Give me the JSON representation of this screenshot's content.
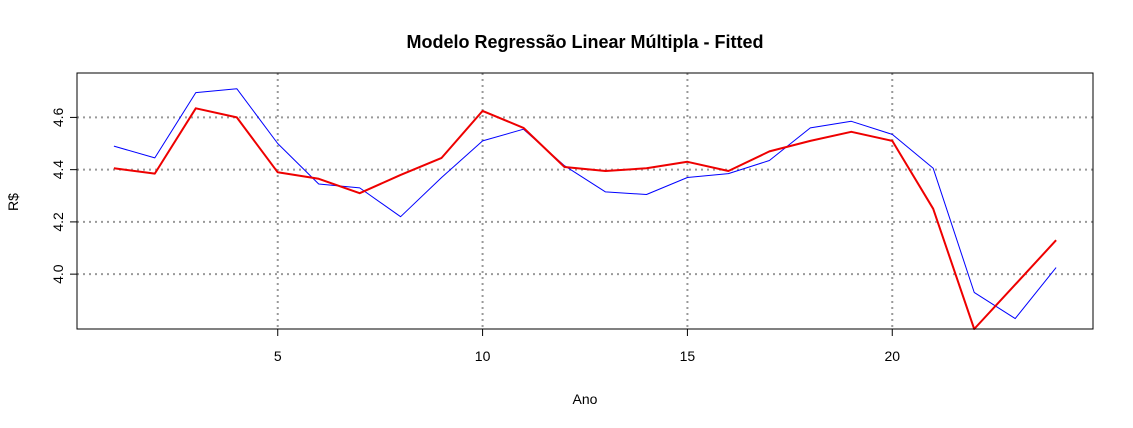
{
  "chart_data": {
    "type": "line",
    "title": "Modelo Regressão Linear Múltipla - Fitted",
    "xlabel": "Ano",
    "ylabel": "R$",
    "xlim": [
      0.1,
      24.9
    ],
    "ylim": [
      3.79,
      4.77
    ],
    "x_ticks": [
      5,
      10,
      15,
      20
    ],
    "y_ticks": [
      4.0,
      4.2,
      4.4,
      4.6
    ],
    "x_tick_labels": [
      "5",
      "10",
      "15",
      "20"
    ],
    "y_tick_labels": [
      "4.0",
      "4.2",
      "4.4",
      "4.6"
    ],
    "grid": "dotted gray at ticks",
    "legend": "none",
    "x": [
      1,
      2,
      3,
      4,
      5,
      6,
      7,
      8,
      9,
      10,
      11,
      12,
      13,
      14,
      15,
      16,
      17,
      18,
      19,
      20,
      21,
      22,
      23,
      24
    ],
    "series": [
      {
        "color": "#0000ff",
        "width": 1,
        "values": [
          4.49,
          4.445,
          4.695,
          4.71,
          4.5,
          4.345,
          4.33,
          4.22,
          4.37,
          4.51,
          4.555,
          4.415,
          4.315,
          4.305,
          4.37,
          4.385,
          4.435,
          4.56,
          4.585,
          4.535,
          4.405,
          3.93,
          3.83,
          4.025
        ]
      },
      {
        "color": "#ee0000",
        "width": 2,
        "values": [
          4.405,
          4.385,
          4.635,
          4.6,
          4.39,
          4.365,
          4.31,
          4.38,
          4.445,
          4.625,
          4.56,
          4.41,
          4.395,
          4.405,
          4.43,
          4.395,
          4.47,
          4.51,
          4.545,
          4.51,
          4.25,
          3.79,
          3.96,
          4.13
        ]
      }
    ]
  }
}
